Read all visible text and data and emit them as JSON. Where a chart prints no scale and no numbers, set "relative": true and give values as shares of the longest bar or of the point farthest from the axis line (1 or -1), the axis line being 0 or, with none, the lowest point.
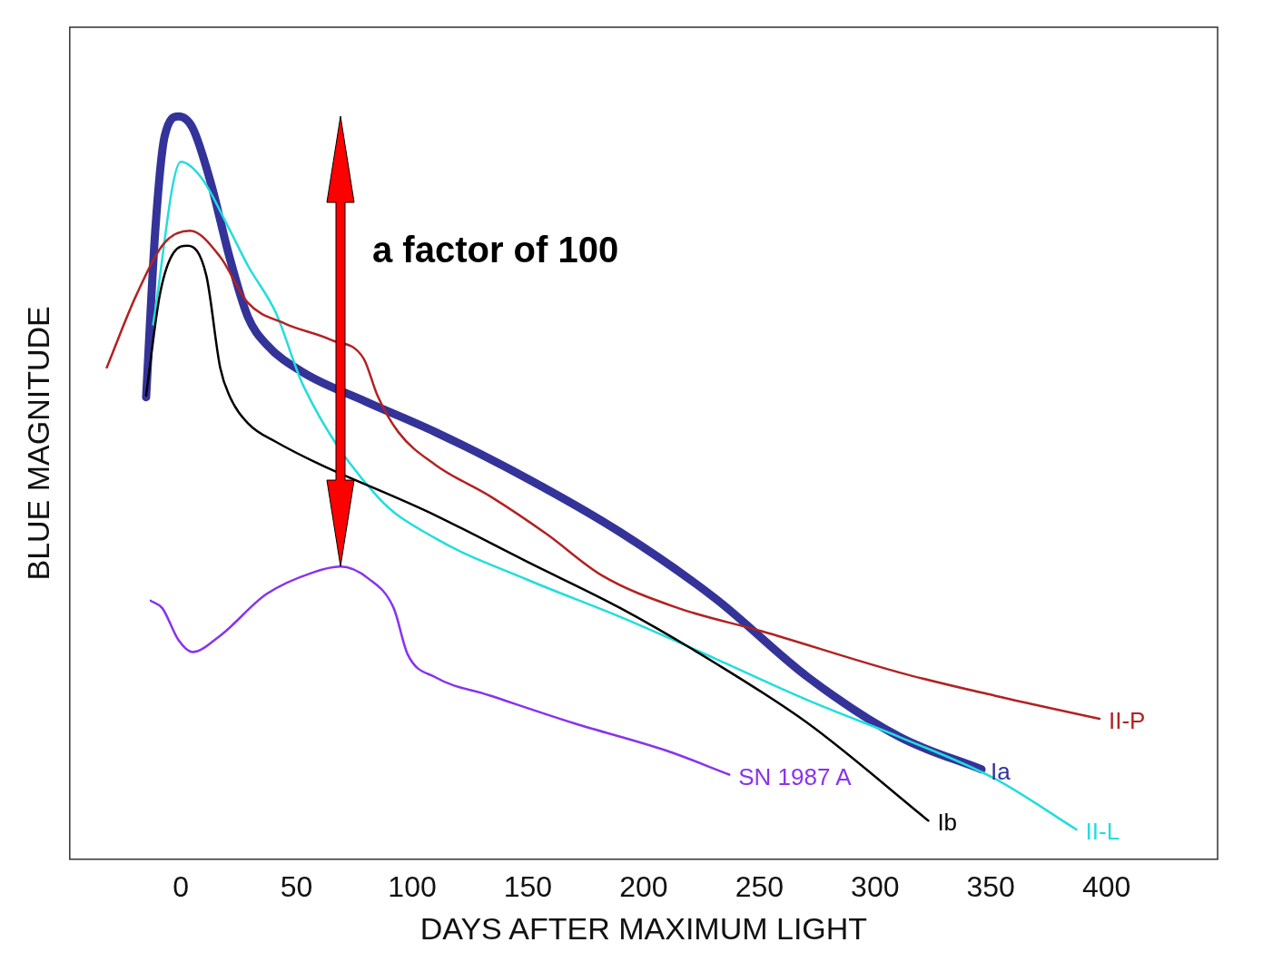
{
  "chart_data": {
    "type": "line",
    "xlabel": "DAYS AFTER MAXIMUM LIGHT",
    "ylabel": "BLUE MAGNITUDE",
    "relative": true,
    "xlim": [
      -48,
      448
    ],
    "xticks": [
      0,
      50,
      100,
      150,
      200,
      250,
      300,
      350,
      400
    ],
    "grid": false,
    "legend": false,
    "marker": "none",
    "line_style": "solid",
    "annotations": [
      "a factor of 100"
    ],
    "series": [
      {
        "name": "Ia",
        "color": "#333399",
        "x": [
          -15,
          -11,
          -7,
          -1,
          5,
          13,
          21,
          29,
          37,
          53,
          80,
          110,
          150,
          190,
          231,
          271,
          311,
          346
        ],
        "values": [
          0.622,
          0.848,
          0.973,
          1.0,
          0.985,
          0.91,
          0.811,
          0.73,
          0.693,
          0.655,
          0.616,
          0.575,
          0.512,
          0.44,
          0.351,
          0.245,
          0.164,
          0.121
        ]
      },
      {
        "name": "II-L",
        "color": "#22dddd",
        "x": [
          -12,
          0,
          9,
          21,
          29,
          41,
          53,
          85,
          110,
          150,
          190,
          231,
          271,
          311,
          352,
          387
        ],
        "values": [
          0.72,
          0.939,
          0.917,
          0.848,
          0.799,
          0.736,
          0.637,
          0.488,
          0.432,
          0.376,
          0.326,
          0.27,
          0.214,
          0.164,
          0.108,
          0.04
        ]
      },
      {
        "name": "II-P",
        "color": "#b22222",
        "x": [
          -32,
          -19,
          -7,
          4,
          17,
          29,
          45,
          65,
          79,
          85,
          94,
          110,
          134,
          158,
          182,
          215,
          251,
          311,
          352,
          397
        ],
        "values": [
          0.662,
          0.761,
          0.83,
          0.846,
          0.811,
          0.749,
          0.721,
          0.699,
          0.674,
          0.624,
          0.575,
          0.531,
          0.488,
          0.438,
          0.382,
          0.338,
          0.307,
          0.251,
          0.22,
          0.189
        ]
      },
      {
        "name": "Ib",
        "color": "#000000",
        "x": [
          -15,
          -9,
          -3,
          3,
          11,
          17,
          21,
          29,
          41,
          110,
          150,
          190,
          231,
          271,
          323
        ],
        "values": [
          0.624,
          0.761,
          0.817,
          0.826,
          0.786,
          0.662,
          0.624,
          0.587,
          0.562,
          0.463,
          0.4,
          0.338,
          0.264,
          0.183,
          0.052
        ]
      },
      {
        "name": "SN 1987 A",
        "color": "#8833ee",
        "x": [
          -13,
          -8,
          -1,
          5,
          17,
          37,
          57,
          69,
          81,
          92,
          98,
          110,
          134,
          170,
          210,
          237
        ],
        "values": [
          0.348,
          0.338,
          0.295,
          0.279,
          0.301,
          0.357,
          0.386,
          0.394,
          0.378,
          0.338,
          0.276,
          0.245,
          0.22,
          0.183,
          0.146,
          0.114
        ]
      }
    ]
  }
}
